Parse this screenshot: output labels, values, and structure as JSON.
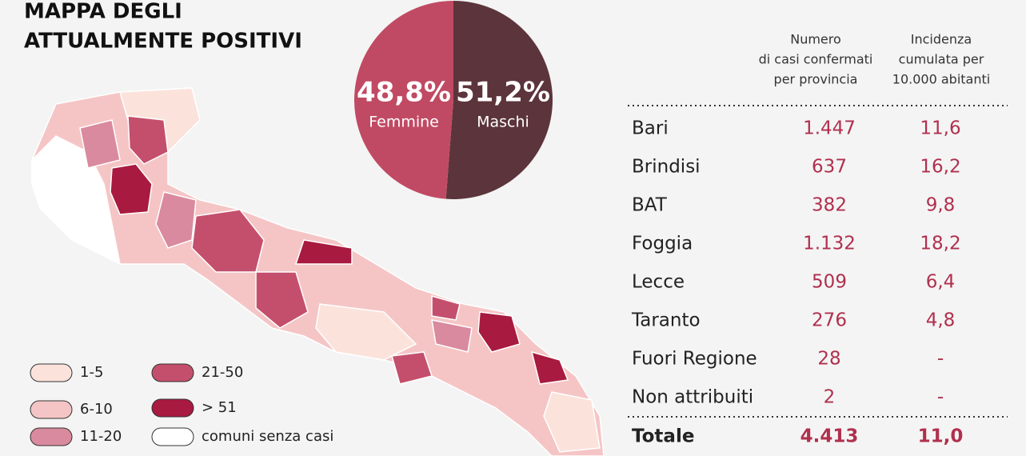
{
  "title": [
    "MAPPA DEGLI",
    "ATTUALMENTE POSITIVI"
  ],
  "pie": {
    "type": "pie",
    "slices": [
      {
        "name": "Femmine",
        "value": 48.8,
        "label": "48,8%",
        "color": "#c04a63"
      },
      {
        "name": "Maschi",
        "value": 51.2,
        "label": "51,2%",
        "color": "#5c343b"
      }
    ]
  },
  "legend": [
    {
      "label": "1-5",
      "color": "#fbe3dc"
    },
    {
      "label": "6-10",
      "color": "#f5c5c5"
    },
    {
      "label": "11-20",
      "color": "#d98a9e"
    },
    {
      "label": "21-50",
      "color": "#c44f6c"
    },
    {
      "label": "> 51",
      "color": "#a81a3f"
    },
    {
      "label": "comuni senza casi",
      "color": "#ffffff"
    }
  ],
  "table": {
    "headers": [
      [
        "Numero",
        "di casi confermati",
        "per provincia"
      ],
      [
        "Incidenza",
        "cumulata per",
        "10.000 abitanti"
      ]
    ],
    "rows": [
      [
        "Bari",
        "1.447",
        "11,6"
      ],
      [
        "Brindisi",
        "637",
        "16,2"
      ],
      [
        "BAT",
        "382",
        "9,8"
      ],
      [
        "Foggia",
        "1.132",
        "18,2"
      ],
      [
        "Lecce",
        "509",
        "6,4"
      ],
      [
        "Taranto",
        "276",
        "4,8"
      ],
      [
        "Fuori Regione",
        "28",
        "-"
      ],
      [
        "Non attribuiti",
        "2",
        "-"
      ]
    ],
    "total": [
      "Totale",
      "4.413",
      "11,0"
    ]
  }
}
